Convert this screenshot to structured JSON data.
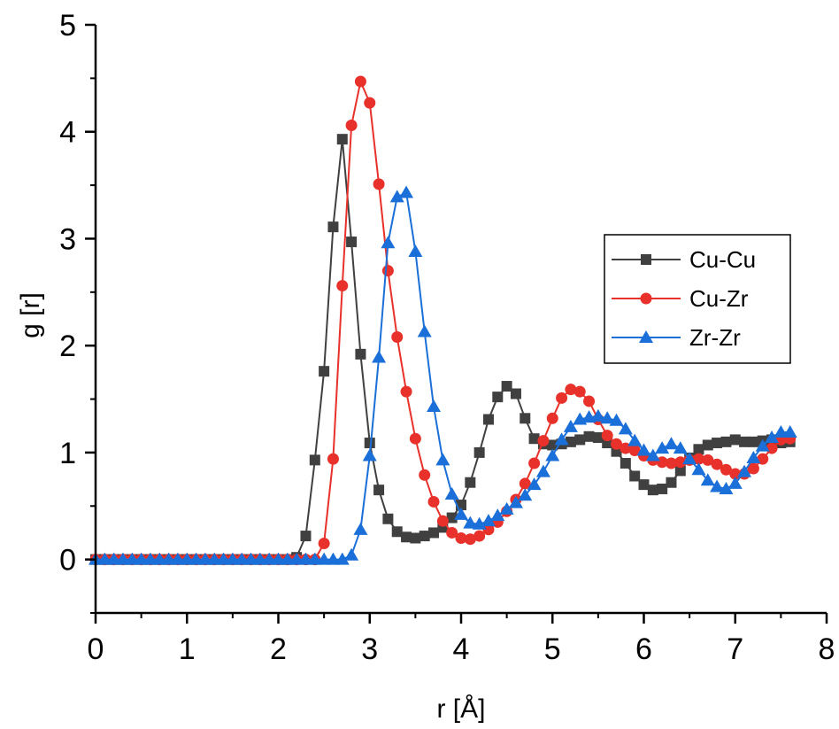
{
  "chart_data": {
    "type": "line",
    "title": "",
    "xlabel": "r [Å]",
    "ylabel": "g [r]",
    "xlim": [
      0,
      8
    ],
    "ylim": [
      -0.5,
      5
    ],
    "xticks": [
      "0",
      "1",
      "2",
      "3",
      "4",
      "5",
      "6",
      "7",
      "8"
    ],
    "yticks": [
      "0",
      "1",
      "2",
      "3",
      "4",
      "5"
    ],
    "grid": false,
    "legend_position": "right",
    "series": [
      {
        "name": "Cu-Cu",
        "color": "#404040",
        "marker": "square",
        "x": [
          0,
          0.1,
          0.2,
          0.3,
          0.4,
          0.5,
          0.6,
          0.7,
          0.8,
          0.9,
          1.0,
          1.1,
          1.2,
          1.3,
          1.4,
          1.5,
          1.6,
          1.7,
          1.8,
          1.9,
          2.0,
          2.1,
          2.2,
          2.3,
          2.4,
          2.5,
          2.6,
          2.7,
          2.8,
          2.9,
          3.0,
          3.1,
          3.2,
          3.3,
          3.4,
          3.5,
          3.6,
          3.7,
          3.8,
          3.9,
          4.0,
          4.1,
          4.2,
          4.3,
          4.4,
          4.5,
          4.6,
          4.7,
          4.8,
          4.9,
          5.0,
          5.1,
          5.2,
          5.3,
          5.4,
          5.5,
          5.6,
          5.7,
          5.8,
          5.9,
          6.0,
          6.1,
          6.2,
          6.3,
          6.4,
          6.5,
          6.6,
          6.7,
          6.8,
          6.9,
          7.0,
          7.1,
          7.2,
          7.3,
          7.4,
          7.5,
          7.6
        ],
        "y": [
          0,
          0,
          0,
          0,
          0,
          0,
          0,
          0,
          0,
          0,
          0,
          0,
          0,
          0,
          0,
          0,
          0,
          0,
          0,
          0,
          0,
          0,
          0.02,
          0.22,
          0.93,
          1.76,
          3.11,
          3.93,
          2.97,
          1.92,
          1.09,
          0.65,
          0.38,
          0.26,
          0.21,
          0.2,
          0.22,
          0.25,
          0.3,
          0.39,
          0.51,
          0.72,
          1.0,
          1.31,
          1.52,
          1.62,
          1.55,
          1.32,
          1.13,
          1.08,
          1.07,
          1.08,
          1.1,
          1.12,
          1.15,
          1.14,
          1.09,
          1.01,
          0.9,
          0.78,
          0.7,
          0.65,
          0.66,
          0.72,
          0.83,
          0.95,
          1.03,
          1.07,
          1.09,
          1.1,
          1.12,
          1.1,
          1.1,
          1.11,
          1.12,
          1.09,
          1.1
        ]
      },
      {
        "name": "Cu-Zr",
        "color": "#e8312a",
        "marker": "circle",
        "x": [
          0,
          0.1,
          0.2,
          0.3,
          0.4,
          0.5,
          0.6,
          0.7,
          0.8,
          0.9,
          1.0,
          1.1,
          1.2,
          1.3,
          1.4,
          1.5,
          1.6,
          1.7,
          1.8,
          1.9,
          2.0,
          2.1,
          2.2,
          2.3,
          2.4,
          2.5,
          2.6,
          2.7,
          2.8,
          2.9,
          3.0,
          3.1,
          3.2,
          3.3,
          3.4,
          3.5,
          3.6,
          3.7,
          3.8,
          3.9,
          4.0,
          4.1,
          4.2,
          4.3,
          4.4,
          4.5,
          4.6,
          4.7,
          4.8,
          4.9,
          5.0,
          5.1,
          5.2,
          5.3,
          5.4,
          5.5,
          5.6,
          5.7,
          5.8,
          5.9,
          6.0,
          6.1,
          6.2,
          6.3,
          6.4,
          6.5,
          6.6,
          6.7,
          6.8,
          6.9,
          7.0,
          7.1,
          7.2,
          7.3,
          7.4,
          7.5,
          7.6
        ],
        "y": [
          0,
          0,
          0,
          0,
          0,
          0,
          0,
          0,
          0,
          0,
          0,
          0,
          0,
          0,
          0,
          0,
          0,
          0,
          0,
          0,
          0,
          0,
          0,
          0,
          0,
          0.15,
          0.94,
          2.56,
          4.06,
          4.47,
          4.27,
          3.51,
          2.7,
          2.08,
          1.57,
          1.13,
          0.79,
          0.54,
          0.36,
          0.25,
          0.2,
          0.19,
          0.22,
          0.28,
          0.35,
          0.45,
          0.56,
          0.71,
          0.9,
          1.11,
          1.32,
          1.51,
          1.59,
          1.57,
          1.48,
          1.31,
          1.16,
          1.08,
          1.04,
          1.02,
          0.97,
          0.93,
          0.91,
          0.9,
          0.91,
          0.93,
          0.94,
          0.93,
          0.89,
          0.84,
          0.8,
          0.8,
          0.85,
          0.94,
          1.04,
          1.12,
          1.13
        ]
      },
      {
        "name": "Zr-Zr",
        "color": "#1a6fd8",
        "marker": "triangle",
        "x": [
          0,
          0.1,
          0.2,
          0.3,
          0.4,
          0.5,
          0.6,
          0.7,
          0.8,
          0.9,
          1.0,
          1.1,
          1.2,
          1.3,
          1.4,
          1.5,
          1.6,
          1.7,
          1.8,
          1.9,
          2.0,
          2.1,
          2.2,
          2.3,
          2.4,
          2.5,
          2.6,
          2.7,
          2.8,
          2.9,
          3.0,
          3.1,
          3.2,
          3.3,
          3.4,
          3.5,
          3.6,
          3.7,
          3.8,
          3.9,
          4.0,
          4.1,
          4.2,
          4.3,
          4.4,
          4.5,
          4.6,
          4.7,
          4.8,
          4.9,
          5.0,
          5.1,
          5.2,
          5.3,
          5.4,
          5.5,
          5.6,
          5.7,
          5.8,
          5.9,
          6.0,
          6.1,
          6.2,
          6.3,
          6.4,
          6.5,
          6.6,
          6.7,
          6.8,
          6.9,
          7.0,
          7.1,
          7.2,
          7.3,
          7.4,
          7.5,
          7.6
        ],
        "y": [
          0,
          0,
          0,
          0,
          0,
          0,
          0,
          0,
          0,
          0,
          0,
          0,
          0,
          0,
          0,
          0,
          0,
          0,
          0,
          0,
          0,
          0,
          0,
          0,
          0,
          0,
          0,
          0,
          0.04,
          0.28,
          0.97,
          1.89,
          2.96,
          3.39,
          3.43,
          2.88,
          2.13,
          1.43,
          0.93,
          0.61,
          0.42,
          0.34,
          0.33,
          0.36,
          0.41,
          0.47,
          0.53,
          0.6,
          0.7,
          0.82,
          0.97,
          1.12,
          1.24,
          1.31,
          1.33,
          1.34,
          1.32,
          1.3,
          1.22,
          1.11,
          1.02,
          0.97,
          1.04,
          1.08,
          1.04,
          0.94,
          0.84,
          0.74,
          0.68,
          0.66,
          0.71,
          0.82,
          0.95,
          1.06,
          1.14,
          1.19,
          1.19
        ]
      }
    ]
  }
}
